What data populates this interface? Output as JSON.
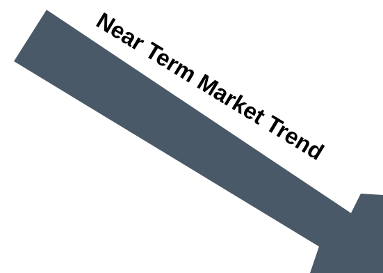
{
  "diagram": {
    "label": "Near Term Market Trend",
    "arrow_color": "#4a5967",
    "text_color": "#000000",
    "direction": "down-right"
  }
}
